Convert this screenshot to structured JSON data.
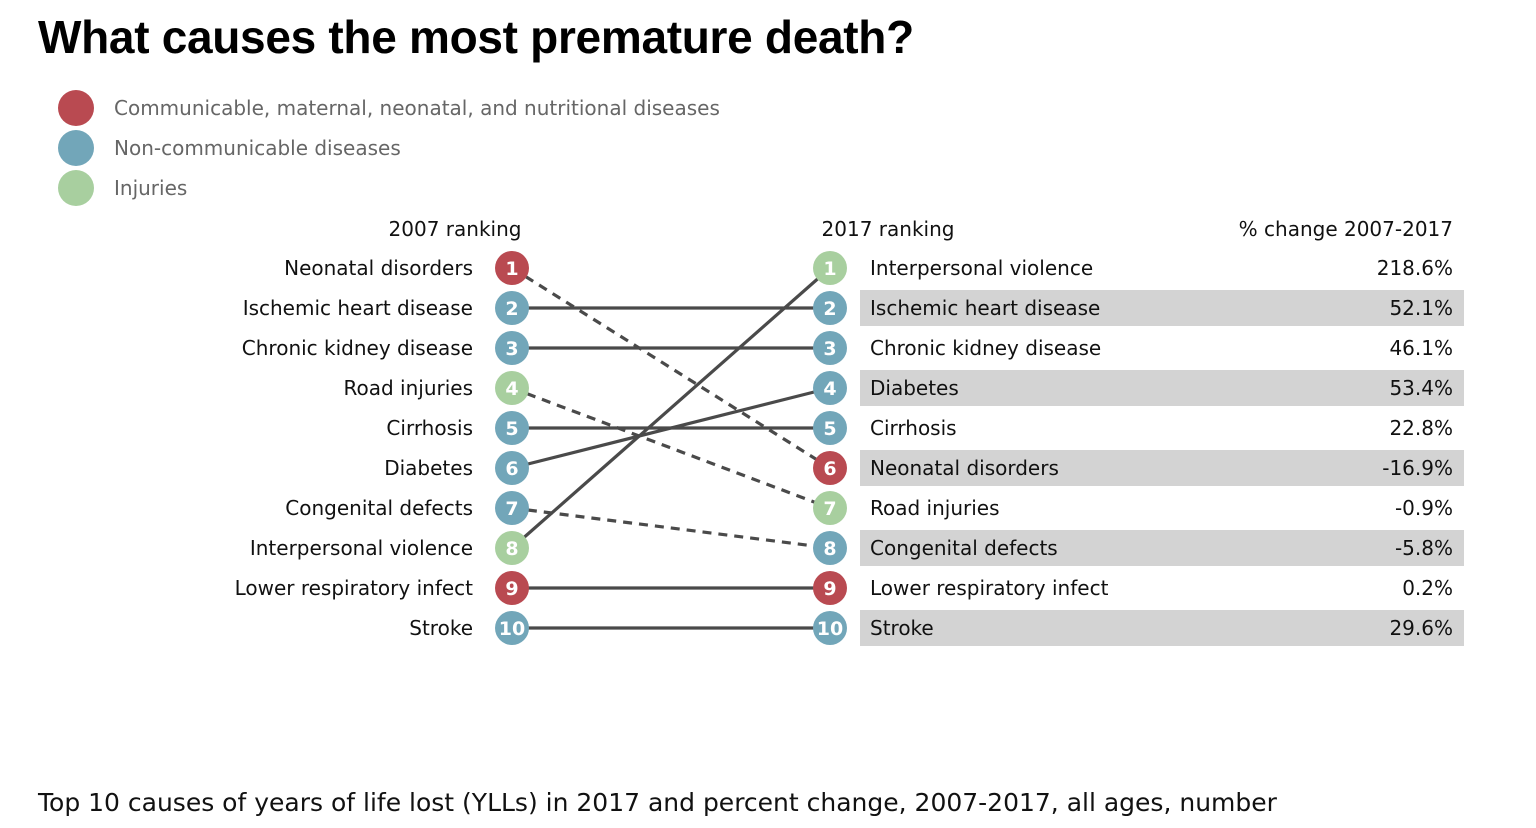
{
  "title": "What causes the most premature death?",
  "subtitle": "Top 10 causes of years of life lost (YLLs) in 2017 and percent change, 2007-2017, all ages, number",
  "legend": [
    {
      "label": "Communicable, maternal, neonatal, and nutritional diseases",
      "color": "#b94a51"
    },
    {
      "label": "Non-communicable diseases",
      "color": "#72a6b9"
    },
    {
      "label": "Injuries",
      "color": "#a8cf9f"
    }
  ],
  "chart_data": {
    "type": "slope",
    "headers": {
      "left": "2007 ranking",
      "right": "2017 ranking",
      "change": "% change 2007-2017"
    },
    "left": [
      {
        "rank": "1",
        "cause": "Neonatal disorders",
        "group": "communicable"
      },
      {
        "rank": "2",
        "cause": "Ischemic heart disease",
        "group": "noncommunicable"
      },
      {
        "rank": "3",
        "cause": "Chronic kidney disease",
        "group": "noncommunicable"
      },
      {
        "rank": "4",
        "cause": "Road injuries",
        "group": "injuries"
      },
      {
        "rank": "5",
        "cause": "Cirrhosis",
        "group": "noncommunicable"
      },
      {
        "rank": "6",
        "cause": "Diabetes",
        "group": "noncommunicable"
      },
      {
        "rank": "7",
        "cause": "Congenital defects",
        "group": "noncommunicable"
      },
      {
        "rank": "8",
        "cause": "Interpersonal violence",
        "group": "injuries"
      },
      {
        "rank": "9",
        "cause": "Lower respiratory infect",
        "group": "communicable"
      },
      {
        "rank": "10",
        "cause": "Stroke",
        "group": "noncommunicable"
      }
    ],
    "right": [
      {
        "rank": "1",
        "cause": "Interpersonal violence",
        "group": "injuries",
        "change": "218.6%"
      },
      {
        "rank": "2",
        "cause": "Ischemic heart disease",
        "group": "noncommunicable",
        "change": "52.1%"
      },
      {
        "rank": "3",
        "cause": "Chronic kidney disease",
        "group": "noncommunicable",
        "change": "46.1%"
      },
      {
        "rank": "4",
        "cause": "Diabetes",
        "group": "noncommunicable",
        "change": "53.4%"
      },
      {
        "rank": "5",
        "cause": "Cirrhosis",
        "group": "noncommunicable",
        "change": "22.8%"
      },
      {
        "rank": "6",
        "cause": "Neonatal disorders",
        "group": "communicable",
        "change": "-16.9%"
      },
      {
        "rank": "7",
        "cause": "Road injuries",
        "group": "injuries",
        "change": "-0.9%"
      },
      {
        "rank": "8",
        "cause": "Congenital defects",
        "group": "noncommunicable",
        "change": "-5.8%"
      },
      {
        "rank": "9",
        "cause": "Lower respiratory infect",
        "group": "communicable",
        "change": "0.2%"
      },
      {
        "rank": "10",
        "cause": "Stroke",
        "group": "noncommunicable",
        "change": "29.6%"
      }
    ],
    "links": [
      {
        "from": 1,
        "to": 6,
        "style": "dashed"
      },
      {
        "from": 2,
        "to": 2,
        "style": "solid"
      },
      {
        "from": 3,
        "to": 3,
        "style": "solid"
      },
      {
        "from": 4,
        "to": 7,
        "style": "dashed"
      },
      {
        "from": 5,
        "to": 5,
        "style": "solid"
      },
      {
        "from": 6,
        "to": 4,
        "style": "solid"
      },
      {
        "from": 7,
        "to": 8,
        "style": "dashed"
      },
      {
        "from": 8,
        "to": 1,
        "style": "solid"
      },
      {
        "from": 9,
        "to": 9,
        "style": "solid"
      },
      {
        "from": 10,
        "to": 10,
        "style": "solid"
      }
    ],
    "group_colors": {
      "communicable": "#b94a51",
      "noncommunicable": "#72a6b9",
      "injuries": "#a8cf9f"
    },
    "line_color": "#4a4a4a",
    "stripe_color": "#d3d3d3"
  }
}
